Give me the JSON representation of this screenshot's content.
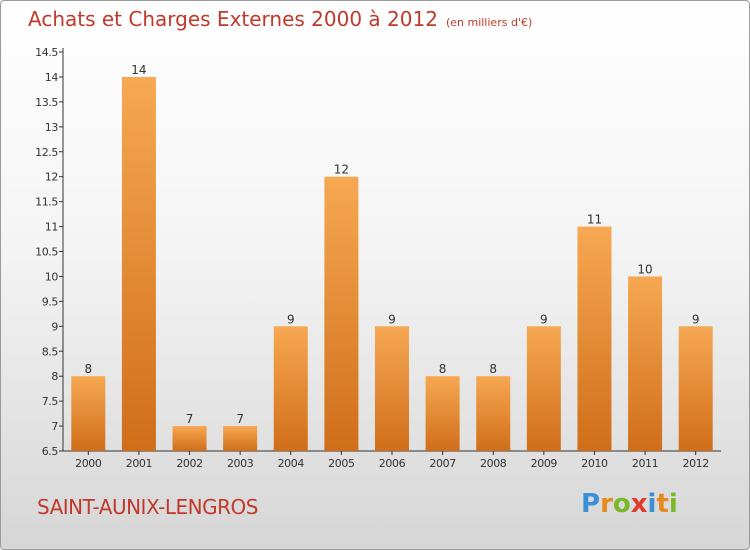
{
  "title": "Achats et Charges Externes 2000 à 2012",
  "unit": "(en milliers d'€)",
  "commune": "SAINT-AUNIX-LENGROS",
  "logo": {
    "letters": [
      "P",
      "r",
      "o",
      "x",
      "i",
      "t",
      "i"
    ],
    "colors": [
      "#3a8fd6",
      "#e8891f",
      "#7ab829",
      "#e03a2f",
      "#3a8fd6",
      "#e8891f",
      "#7ab829"
    ]
  },
  "colors": {
    "bar_light": "#f7a852",
    "bar_dark": "#d06e1a",
    "title": "#c0392b"
  },
  "chart_data": {
    "type": "bar",
    "categories": [
      "2000",
      "2001",
      "2002",
      "2003",
      "2004",
      "2005",
      "2006",
      "2007",
      "2008",
      "2009",
      "2010",
      "2011",
      "2012"
    ],
    "values": [
      8,
      14,
      7,
      7,
      9,
      12,
      9,
      8,
      8,
      9,
      11,
      10,
      9
    ],
    "ylim": [
      6.5,
      14.5
    ],
    "yticks": [
      "6.5",
      "7",
      "7.5",
      "8",
      "8.5",
      "9",
      "9.5",
      "10",
      "10.5",
      "11",
      "11.5",
      "12",
      "12.5",
      "13",
      "13.5",
      "14",
      "14.5"
    ],
    "grid": false
  }
}
